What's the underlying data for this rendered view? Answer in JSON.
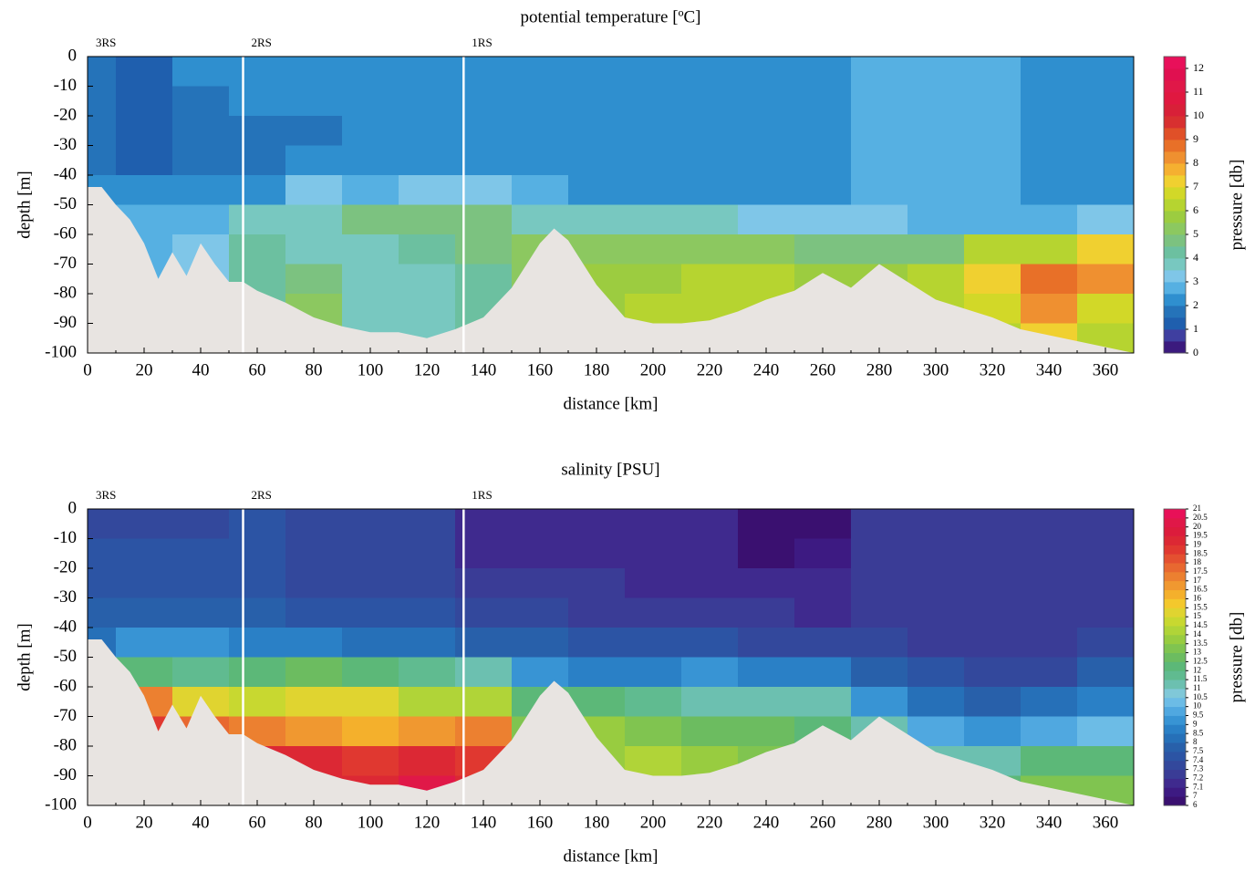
{
  "chart_data": [
    {
      "type": "contour",
      "title": "potential temperature [ºC]",
      "xlabel": "distance [km]",
      "ylabel": "depth [m]",
      "xlim": [
        0,
        370
      ],
      "ylim": [
        -100,
        0
      ],
      "xticks": [
        0,
        20,
        40,
        60,
        80,
        100,
        120,
        140,
        160,
        180,
        200,
        220,
        240,
        260,
        280,
        300,
        320,
        340,
        360
      ],
      "yticks": [
        0,
        -10,
        -20,
        -30,
        -40,
        -50,
        -60,
        -70,
        -80,
        -90,
        -100
      ],
      "stations": [
        {
          "name": "3RS",
          "x": 0
        },
        {
          "name": "2RS",
          "x": 55
        },
        {
          "name": "1RS",
          "x": 133
        }
      ],
      "field": {
        "x": [
          0,
          20,
          40,
          60,
          80,
          100,
          120,
          140,
          160,
          180,
          200,
          220,
          240,
          260,
          280,
          300,
          320,
          340,
          360
        ],
        "depth": [
          -5,
          -15,
          -25,
          -35,
          -45,
          -55,
          -65,
          -75,
          -85,
          -95
        ],
        "values": [
          [
            1.8,
            1.6,
            1.6,
            1.6,
            2.2,
            2.5,
            2.5,
            2.5,
            2.5,
            2.5
          ],
          [
            1.4,
            1.4,
            1.4,
            1.4,
            2.2,
            2.8,
            2.8,
            2.8,
            2.8,
            2.8
          ],
          [
            2,
            1.8,
            1.8,
            1.8,
            2.4,
            2.8,
            3,
            3,
            3,
            3
          ],
          [
            2,
            2,
            1.8,
            1.8,
            2.4,
            3.5,
            4,
            4,
            4,
            4
          ],
          [
            2,
            2,
            1.8,
            2.2,
            3,
            3.8,
            3.5,
            4.5,
            5,
            5
          ],
          [
            2,
            2,
            2,
            2.2,
            2.8,
            4.5,
            3.5,
            3.5,
            3.5,
            3.5
          ],
          [
            2,
            2,
            2,
            2.2,
            3,
            4.5,
            4,
            3.5,
            3.5,
            3.5
          ],
          [
            2,
            2,
            2,
            2.2,
            3,
            4.8,
            4.5,
            4,
            4,
            4
          ],
          [
            2,
            2,
            2,
            2.2,
            2.6,
            3.5,
            5,
            5,
            5,
            5
          ],
          [
            2.2,
            2.2,
            2.2,
            2.2,
            2.4,
            3.5,
            5,
            5.5,
            5.5,
            5.5
          ],
          [
            2.2,
            2.2,
            2.2,
            2.2,
            2.4,
            3.5,
            5,
            5.5,
            6,
            6
          ],
          [
            2.2,
            2.2,
            2.2,
            2.2,
            2.4,
            3.5,
            5.2,
            6,
            6,
            6
          ],
          [
            2.2,
            2.2,
            2.2,
            2.2,
            2.4,
            3.2,
            5,
            6,
            6,
            6
          ],
          [
            2.2,
            2.2,
            2.2,
            2.2,
            2.4,
            3,
            4.5,
            5.5,
            6,
            6
          ],
          [
            2.6,
            2.6,
            2.6,
            2.6,
            2.6,
            3.2,
            4.5,
            5.5,
            6,
            6
          ],
          [
            2.6,
            2.6,
            2.6,
            2.6,
            2.6,
            2.8,
            4.5,
            6,
            6,
            6
          ],
          [
            2.6,
            2.6,
            2.6,
            2.6,
            2.6,
            2.6,
            6,
            7,
            6.5,
            6
          ],
          [
            2.2,
            2.2,
            2.2,
            2.2,
            2.2,
            2.6,
            6,
            8.5,
            8,
            7
          ],
          [
            2.2,
            2.2,
            2.2,
            2.2,
            2.2,
            3,
            7,
            8,
            6.5,
            6
          ]
        ]
      },
      "bottom": {
        "x": [
          0,
          5,
          10,
          15,
          20,
          25,
          30,
          35,
          40,
          45,
          50,
          55,
          60,
          70,
          80,
          90,
          100,
          110,
          120,
          130,
          140,
          150,
          160,
          165,
          170,
          180,
          190,
          200,
          210,
          220,
          230,
          240,
          250,
          260,
          270,
          280,
          290,
          300,
          310,
          320,
          330,
          340,
          350,
          360,
          370
        ],
        "depth": [
          -44,
          -44,
          -50,
          -55,
          -63,
          -75,
          -66,
          -74,
          -63,
          -70,
          -76,
          -76,
          -79,
          -83,
          -88,
          -91,
          -93,
          -93,
          -95,
          -92,
          -88,
          -78,
          -63,
          -58,
          -62,
          -77,
          -88,
          -90,
          -90,
          -89,
          -86,
          -82,
          -79,
          -73,
          -78,
          -70,
          -76,
          -82,
          -85,
          -88,
          -92,
          -94,
          -96,
          -98,
          -100
        ],
        "color": "#e8e4e1"
      },
      "station_line_color": "#ffffff",
      "colorbar": {
        "label": "pressure [db]",
        "scale": "linear",
        "levels": [
          0,
          0.5,
          1,
          1.5,
          2,
          2.5,
          3,
          3.5,
          4,
          4.5,
          5,
          5.5,
          6,
          6.5,
          7,
          7.5,
          8,
          8.5,
          9,
          9.5,
          10,
          10.5,
          11,
          11.5,
          12,
          12.5
        ],
        "colors": [
          "#3b1a7e",
          "#3f3fa0",
          "#1f5fae",
          "#2573b9",
          "#2f8fcf",
          "#56b0e2",
          "#7fc6e8",
          "#78c8c0",
          "#6cc0a0",
          "#7cc280",
          "#8cc860",
          "#9ccc40",
          "#b6d430",
          "#d2d828",
          "#f0d030",
          "#f5b030",
          "#ef9030",
          "#e87028",
          "#e05028",
          "#d83030",
          "#d82038",
          "#e01840",
          "#e01848",
          "#e01050",
          "#e8105a"
        ],
        "ticks": [
          0,
          1,
          2,
          3,
          4,
          5,
          6,
          7,
          8,
          9,
          10,
          11,
          12
        ]
      }
    },
    {
      "type": "contour",
      "title": "salinity [PSU]",
      "xlabel": "distance [km]",
      "ylabel": "depth [m]",
      "xlim": [
        0,
        370
      ],
      "ylim": [
        -100,
        0
      ],
      "xticks": [
        0,
        20,
        40,
        60,
        80,
        100,
        120,
        140,
        160,
        180,
        200,
        220,
        240,
        260,
        280,
        300,
        320,
        340,
        360
      ],
      "yticks": [
        0,
        -10,
        -20,
        -30,
        -40,
        -50,
        -60,
        -70,
        -80,
        -90,
        -100
      ],
      "stations": [
        {
          "name": "3RS",
          "x": 0
        },
        {
          "name": "2RS",
          "x": 55
        },
        {
          "name": "1RS",
          "x": 133
        }
      ],
      "field": {
        "x": [
          0,
          20,
          40,
          60,
          80,
          100,
          120,
          140,
          160,
          180,
          200,
          220,
          240,
          260,
          280,
          300,
          320,
          340,
          360
        ],
        "depth": [
          -5,
          -15,
          -25,
          -35,
          -45,
          -55,
          -65,
          -75,
          -85,
          -95
        ],
        "values": [
          [
            7.3,
            7.4,
            7.4,
            7.5,
            8,
            14,
            17,
            17,
            17,
            17
          ],
          [
            7.3,
            7.4,
            7.4,
            7.6,
            9,
            12,
            17,
            18.5,
            18.5,
            18.5
          ],
          [
            7.3,
            7.4,
            7.4,
            7.5,
            9,
            11.5,
            15,
            17.5,
            17.5,
            17.5
          ],
          [
            7.4,
            7.4,
            7.4,
            7.5,
            8.5,
            12,
            14.5,
            17,
            19,
            19
          ],
          [
            7.3,
            7.3,
            7.3,
            7.4,
            8.5,
            12.5,
            15,
            16.5,
            19,
            19
          ],
          [
            7.3,
            7.3,
            7.3,
            7.4,
            8,
            12,
            15,
            16,
            18.5,
            19
          ],
          [
            7.3,
            7.3,
            7.3,
            7.4,
            8,
            11.5,
            14,
            16.5,
            19,
            20
          ],
          [
            7.1,
            7.1,
            7.2,
            7.3,
            7.6,
            11,
            14,
            17,
            18.5,
            19
          ],
          [
            7.1,
            7.1,
            7.2,
            7.3,
            7.5,
            9,
            12,
            13,
            13,
            13
          ],
          [
            7.1,
            7.1,
            7.2,
            7.2,
            7.4,
            8.5,
            12,
            13.5,
            13.5,
            13.5
          ],
          [
            7.1,
            7.1,
            7.1,
            7.2,
            7.4,
            8.5,
            11.5,
            13,
            14,
            14
          ],
          [
            7.1,
            7.1,
            7.1,
            7.2,
            7.4,
            9,
            11,
            12.5,
            13.5,
            13.5
          ],
          [
            6.8,
            6.8,
            7.1,
            7.2,
            7.3,
            8.5,
            11,
            12.5,
            13,
            13
          ],
          [
            6.8,
            7,
            7.1,
            7.1,
            7.3,
            8.5,
            11,
            12,
            12,
            12
          ],
          [
            7.2,
            7.2,
            7.2,
            7.2,
            7.3,
            7.8,
            9,
            11,
            12,
            12
          ],
          [
            7.2,
            7.2,
            7.2,
            7.2,
            7.2,
            7.4,
            8,
            9.5,
            11,
            11
          ],
          [
            7.2,
            7.2,
            7.2,
            7.2,
            7.2,
            7.3,
            7.5,
            9,
            11,
            12
          ],
          [
            7.2,
            7.2,
            7.2,
            7.2,
            7.2,
            7.3,
            8,
            9.5,
            12,
            13
          ],
          [
            7.2,
            7.2,
            7.2,
            7.2,
            7.3,
            7.5,
            8.5,
            10,
            12,
            13
          ]
        ]
      },
      "bottom": {
        "x": [
          0,
          5,
          10,
          15,
          20,
          25,
          30,
          35,
          40,
          45,
          50,
          55,
          60,
          70,
          80,
          90,
          100,
          110,
          120,
          130,
          140,
          150,
          160,
          165,
          170,
          180,
          190,
          200,
          210,
          220,
          230,
          240,
          250,
          260,
          270,
          280,
          290,
          300,
          310,
          320,
          330,
          340,
          350,
          360,
          370
        ],
        "depth": [
          -44,
          -44,
          -50,
          -55,
          -63,
          -75,
          -66,
          -74,
          -63,
          -70,
          -76,
          -76,
          -79,
          -83,
          -88,
          -91,
          -93,
          -93,
          -95,
          -92,
          -88,
          -78,
          -63,
          -58,
          -62,
          -77,
          -88,
          -90,
          -90,
          -89,
          -86,
          -82,
          -79,
          -73,
          -78,
          -70,
          -76,
          -82,
          -85,
          -88,
          -92,
          -94,
          -96,
          -98,
          -100
        ],
        "color": "#e8e4e1"
      },
      "station_line_color": "#ffffff",
      "colorbar": {
        "label": "pressure [db]",
        "scale": "index",
        "levels": [
          6,
          7,
          7.1,
          7.2,
          7.3,
          7.4,
          7.5,
          8,
          8.5,
          9,
          9.5,
          10,
          10.5,
          11,
          11.5,
          12,
          12.5,
          13,
          13.5,
          14,
          14.5,
          15,
          15.5,
          16,
          16.5,
          17,
          17.5,
          18,
          18.5,
          19,
          19.5,
          20,
          20.5,
          21
        ],
        "colors": [
          "#3a1070",
          "#3d1a82",
          "#3f2a8e",
          "#3a3c96",
          "#33489c",
          "#2c54a4",
          "#2860aa",
          "#2670b8",
          "#2a80c6",
          "#3894d4",
          "#50a8e0",
          "#6cbce6",
          "#80c8d8",
          "#6cc0b0",
          "#60bb90",
          "#5cb878",
          "#6cbc60",
          "#80c450",
          "#98cc40",
          "#b0d438",
          "#c8d830",
          "#e0d430",
          "#f4c82c",
          "#f4b02c",
          "#f09830",
          "#ec8030",
          "#e86830",
          "#e45030",
          "#e03830",
          "#dc2834",
          "#dc1c3c",
          "#e01848",
          "#e81058"
        ],
        "ticks": [
          6,
          7,
          7.1,
          7.2,
          7.3,
          7.4,
          7.5,
          8,
          8.5,
          9,
          9.5,
          10,
          10.5,
          11,
          11.5,
          12,
          12.5,
          13,
          13.5,
          14,
          14.5,
          15,
          15.5,
          16,
          16.5,
          17,
          17.5,
          18,
          18.5,
          19,
          19.5,
          20,
          20.5,
          21
        ]
      }
    }
  ]
}
